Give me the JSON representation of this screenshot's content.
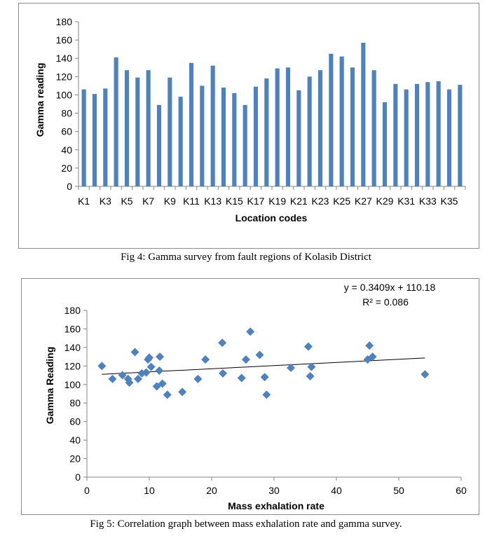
{
  "figures": {
    "fig4_caption": "Fig 4: Gamma survey from fault regions of Kolasib District",
    "fig5_caption": "Fig 5: Correlation graph between mass exhalation rate and gamma survey."
  },
  "chart_data": [
    {
      "type": "bar",
      "title": "",
      "xlabel": "Location codes",
      "ylabel": "Gamma reading",
      "ylim": [
        0,
        180
      ],
      "yticks": [
        0,
        20,
        40,
        60,
        80,
        100,
        120,
        140,
        160,
        180
      ],
      "categories": [
        "K1",
        "K2",
        "K3",
        "K4",
        "K5",
        "K6",
        "K7",
        "K8",
        "K9",
        "K10",
        "K11",
        "K12",
        "K13",
        "K14",
        "K15",
        "K16",
        "K17",
        "K18",
        "K19",
        "K20",
        "K21",
        "K22",
        "K23",
        "K24",
        "K25",
        "K26",
        "K27",
        "K28",
        "K29",
        "K30",
        "K31",
        "K32",
        "K33",
        "K34",
        "K35",
        "K36"
      ],
      "shown_tick_labels": [
        "K1",
        "K3",
        "K5",
        "K7",
        "K9",
        "K11",
        "K13",
        "K15",
        "K17",
        "K19",
        "K21",
        "K23",
        "K25",
        "K27",
        "K29",
        "K31",
        "K33",
        "K35"
      ],
      "values": [
        106,
        101,
        107,
        141,
        127,
        119,
        127,
        89,
        119,
        98,
        135,
        110,
        132,
        108,
        102,
        89,
        109,
        118,
        129,
        130,
        105,
        120,
        127,
        145,
        142,
        130,
        157,
        127,
        92,
        112,
        106,
        112,
        114,
        115,
        106,
        111
      ],
      "color": "#4f81bd",
      "grid": false
    },
    {
      "type": "scatter",
      "title": "",
      "xlabel": "Mass exhalation rate",
      "ylabel": "Gamma Reading",
      "xlim": [
        0,
        60
      ],
      "ylim": [
        0,
        180
      ],
      "xticks": [
        0,
        10,
        20,
        30,
        40,
        50,
        60
      ],
      "yticks": [
        0,
        20,
        40,
        60,
        80,
        100,
        120,
        140,
        160,
        180
      ],
      "points": [
        [
          2.4,
          120
        ],
        [
          4.1,
          106
        ],
        [
          5.7,
          110
        ],
        [
          6.6,
          106
        ],
        [
          6.8,
          102
        ],
        [
          7.7,
          135
        ],
        [
          8.2,
          106
        ],
        [
          8.8,
          112
        ],
        [
          9.5,
          113
        ],
        [
          9.8,
          127
        ],
        [
          10.0,
          129
        ],
        [
          10.3,
          119
        ],
        [
          11.2,
          98
        ],
        [
          11.6,
          115
        ],
        [
          11.7,
          130
        ],
        [
          12.1,
          101
        ],
        [
          12.9,
          89
        ],
        [
          15.3,
          92
        ],
        [
          17.8,
          106
        ],
        [
          19.0,
          127
        ],
        [
          21.7,
          145
        ],
        [
          21.8,
          112
        ],
        [
          24.8,
          107
        ],
        [
          25.5,
          127
        ],
        [
          26.2,
          157
        ],
        [
          27.7,
          132
        ],
        [
          28.5,
          108
        ],
        [
          28.8,
          89
        ],
        [
          32.7,
          118
        ],
        [
          35.5,
          141
        ],
        [
          35.8,
          109
        ],
        [
          36.0,
          119
        ],
        [
          45.0,
          127
        ],
        [
          45.3,
          142
        ],
        [
          45.8,
          130
        ],
        [
          54.2,
          111
        ]
      ],
      "trendline": {
        "slope": 0.3409,
        "intercept": 110.18,
        "x_range": [
          2.4,
          54.2
        ]
      },
      "equation_label": "y = 0.3409x + 110.18",
      "r2_label": "R² = 0.086",
      "marker_color": "#4f81bd",
      "grid": false
    }
  ]
}
